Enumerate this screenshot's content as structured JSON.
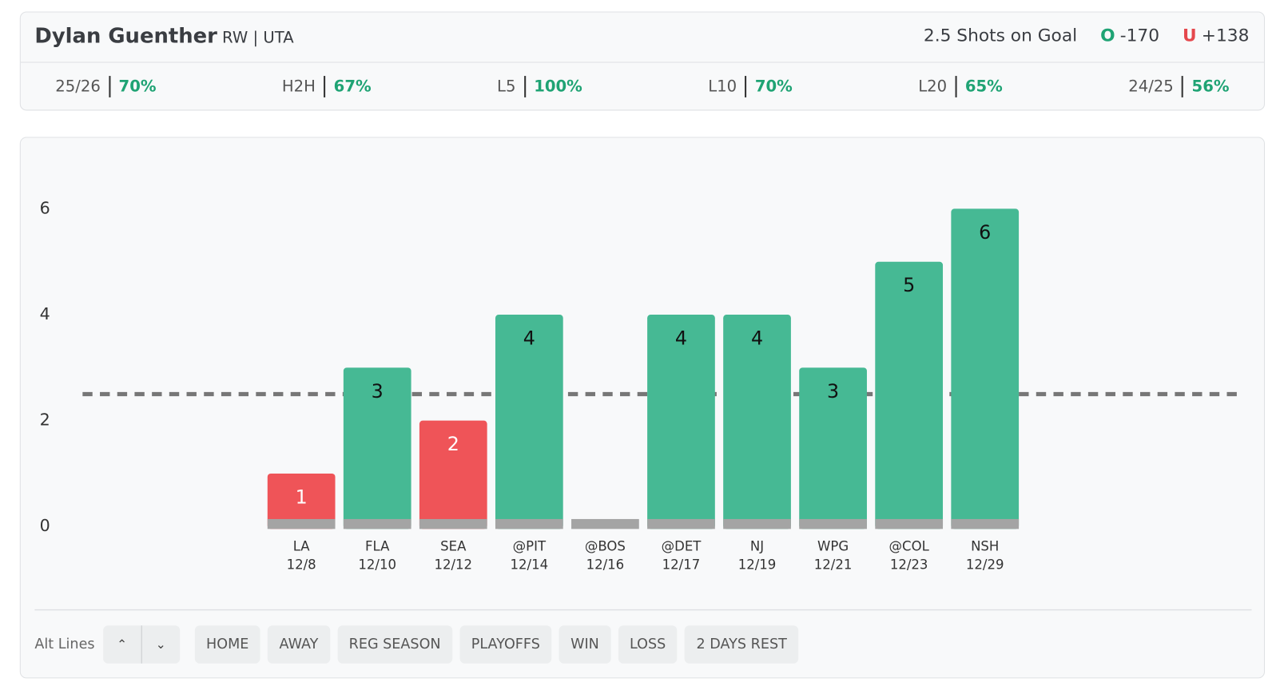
{
  "header": {
    "player": "Dylan Guenther",
    "position": "RW | UTA",
    "prop": "2.5 Shots on Goal",
    "over_label": "O",
    "over_odds": "-170",
    "under_label": "U",
    "under_odds": "+138"
  },
  "splits": [
    {
      "label": "25/26",
      "value": "70%"
    },
    {
      "label": "H2H",
      "value": "67%"
    },
    {
      "label": "L5",
      "value": "100%"
    },
    {
      "label": "L10",
      "value": "70%"
    },
    {
      "label": "L20",
      "value": "65%"
    },
    {
      "label": "24/25",
      "value": "56%"
    }
  ],
  "chart_data": {
    "type": "bar",
    "categories": [
      "LA",
      "FLA",
      "SEA",
      "@PIT",
      "@BOS",
      "@DET",
      "NJ",
      "WPG",
      "@COL",
      "NSH"
    ],
    "dates": [
      "12/8",
      "12/10",
      "12/12",
      "12/14",
      "12/16",
      "12/17",
      "12/19",
      "12/21",
      "12/23",
      "12/29"
    ],
    "values": [
      1,
      3,
      2,
      4,
      0,
      4,
      4,
      3,
      5,
      6
    ],
    "line": 2.5,
    "over_color": "#46b994",
    "under_color": "#ef5458",
    "ylim": [
      0,
      6
    ],
    "yticks": [
      0,
      2,
      4,
      6
    ]
  },
  "controls": {
    "alt_lines": "Alt Lines",
    "filters": [
      "HOME",
      "AWAY",
      "REG SEASON",
      "PLAYOFFS",
      "WIN",
      "LOSS",
      "2 DAYS REST"
    ]
  }
}
